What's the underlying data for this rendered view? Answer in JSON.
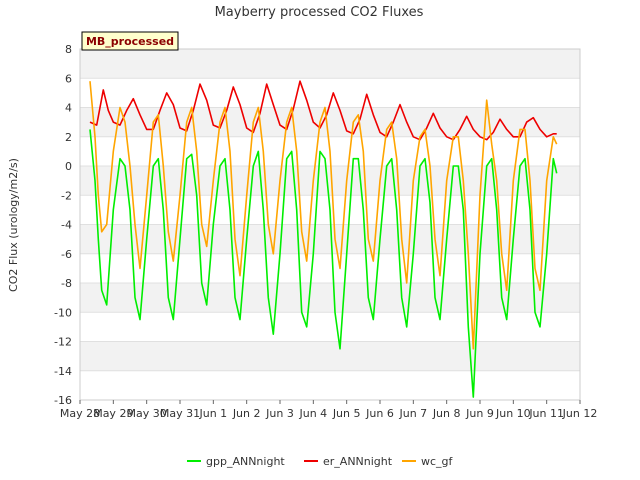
{
  "chart_data": {
    "type": "line",
    "title": "Mayberry processed CO2 Fluxes",
    "xlabel": "",
    "ylabel": "CO2 Flux (urology/m2/s)",
    "ylim": [
      -16,
      8
    ],
    "yticks": [
      -16,
      -14,
      -12,
      -10,
      -8,
      -6,
      -4,
      -2,
      0,
      2,
      4,
      6,
      8
    ],
    "xlim": [
      0,
      15
    ],
    "xticks": [
      {
        "pos": 0,
        "label": "May 28"
      },
      {
        "pos": 1,
        "label": "May 29"
      },
      {
        "pos": 2,
        "label": "May 30"
      },
      {
        "pos": 3,
        "label": "May 31"
      },
      {
        "pos": 4,
        "label": "Jun 1"
      },
      {
        "pos": 5,
        "label": "Jun 2"
      },
      {
        "pos": 6,
        "label": "Jun 3"
      },
      {
        "pos": 7,
        "label": "Jun 4"
      },
      {
        "pos": 8,
        "label": "Jun 5"
      },
      {
        "pos": 9,
        "label": "Jun 6"
      },
      {
        "pos": 10,
        "label": "Jun 7"
      },
      {
        "pos": 11,
        "label": "Jun 8"
      },
      {
        "pos": 12,
        "label": "Jun 9"
      },
      {
        "pos": 13,
        "label": "Jun 10"
      },
      {
        "pos": 14,
        "label": "Jun 11"
      },
      {
        "pos": 15,
        "label": "Jun 12"
      }
    ],
    "grid": true,
    "legend_position": "bottom-center",
    "annotation": "MB_processed",
    "series": [
      {
        "name": "gpp_ANNnight",
        "color": "#00ee00",
        "x": [
          0.3,
          0.45,
          0.55,
          0.65,
          0.8,
          1.0,
          1.2,
          1.35,
          1.5,
          1.65,
          1.8,
          2.0,
          2.2,
          2.35,
          2.5,
          2.65,
          2.8,
          3.0,
          3.2,
          3.35,
          3.5,
          3.65,
          3.8,
          4.0,
          4.2,
          4.35,
          4.5,
          4.65,
          4.8,
          5.0,
          5.2,
          5.35,
          5.5,
          5.65,
          5.8,
          6.0,
          6.2,
          6.35,
          6.5,
          6.65,
          6.8,
          7.0,
          7.2,
          7.35,
          7.5,
          7.65,
          7.8,
          8.0,
          8.2,
          8.35,
          8.5,
          8.65,
          8.8,
          9.0,
          9.2,
          9.35,
          9.5,
          9.65,
          9.8,
          10.0,
          10.2,
          10.35,
          10.5,
          10.65,
          10.8,
          11.0,
          11.2,
          11.35,
          11.5,
          11.65,
          11.8,
          12.0,
          12.2,
          12.35,
          12.5,
          12.65,
          12.8,
          13.0,
          13.2,
          13.35,
          13.5,
          13.65,
          13.8,
          14.0,
          14.2,
          14.3
        ],
        "y": [
          2.5,
          -1,
          -5,
          -8.5,
          -9.5,
          -3,
          0.5,
          0,
          -3,
          -9,
          -10.5,
          -5,
          0,
          0.5,
          -3,
          -9,
          -10.5,
          -5,
          0.5,
          0.8,
          -2,
          -8,
          -9.5,
          -4,
          0,
          0.5,
          -3,
          -9,
          -10.5,
          -5,
          0,
          1,
          -3,
          -9,
          -11.5,
          -6,
          0.5,
          1,
          -3,
          -10,
          -11,
          -6,
          1,
          0.5,
          -3,
          -10,
          -12.5,
          -6,
          0.5,
          0.5,
          -3,
          -9,
          -10.5,
          -5,
          0,
          0.5,
          -3,
          -9,
          -11,
          -6,
          0,
          0.5,
          -2.5,
          -9,
          -10.5,
          -5,
          0,
          0,
          -3,
          -11,
          -15.8,
          -6,
          0,
          0.5,
          -3,
          -9,
          -10.5,
          -5,
          0,
          0.5,
          -3,
          -10,
          -11,
          -6,
          0.5,
          -0.5
        ]
      },
      {
        "name": "er_ANNnight",
        "color": "#ee0000",
        "x": [
          0.3,
          0.5,
          0.7,
          0.85,
          1.0,
          1.2,
          1.4,
          1.6,
          1.8,
          2.0,
          2.2,
          2.4,
          2.6,
          2.8,
          3.0,
          3.2,
          3.4,
          3.6,
          3.8,
          4.0,
          4.2,
          4.4,
          4.6,
          4.8,
          5.0,
          5.2,
          5.4,
          5.6,
          5.8,
          6.0,
          6.2,
          6.4,
          6.6,
          6.8,
          7.0,
          7.2,
          7.4,
          7.6,
          7.8,
          8.0,
          8.2,
          8.4,
          8.6,
          8.8,
          9.0,
          9.2,
          9.4,
          9.6,
          9.8,
          10.0,
          10.2,
          10.4,
          10.6,
          10.8,
          11.0,
          11.2,
          11.4,
          11.6,
          11.8,
          12.0,
          12.2,
          12.4,
          12.6,
          12.8,
          13.0,
          13.2,
          13.4,
          13.6,
          13.8,
          14.0,
          14.2,
          14.3
        ],
        "y": [
          3.0,
          2.8,
          5.2,
          3.8,
          3.0,
          2.8,
          3.8,
          4.6,
          3.5,
          2.5,
          2.5,
          3.8,
          5.0,
          4.2,
          2.6,
          2.4,
          3.8,
          5.6,
          4.5,
          2.8,
          2.6,
          3.8,
          5.4,
          4.2,
          2.6,
          2.3,
          3.6,
          5.6,
          4.2,
          2.8,
          2.5,
          3.9,
          5.8,
          4.5,
          3.0,
          2.6,
          3.5,
          5.0,
          3.8,
          2.4,
          2.2,
          3.2,
          4.9,
          3.5,
          2.3,
          2.0,
          3.0,
          4.2,
          3.0,
          2.0,
          1.8,
          2.6,
          3.6,
          2.6,
          2.0,
          1.8,
          2.5,
          3.4,
          2.5,
          2.0,
          1.8,
          2.3,
          3.2,
          2.5,
          2.0,
          2.0,
          3.0,
          3.3,
          2.5,
          2.0,
          2.2,
          2.2
        ]
      },
      {
        "name": "wc_gf",
        "color": "#ffa500",
        "x": [
          0.3,
          0.45,
          0.55,
          0.65,
          0.8,
          1.0,
          1.2,
          1.35,
          1.5,
          1.65,
          1.8,
          2.0,
          2.2,
          2.35,
          2.5,
          2.65,
          2.8,
          3.0,
          3.2,
          3.35,
          3.5,
          3.65,
          3.8,
          4.0,
          4.2,
          4.35,
          4.5,
          4.65,
          4.8,
          5.0,
          5.2,
          5.35,
          5.5,
          5.65,
          5.8,
          6.0,
          6.2,
          6.35,
          6.5,
          6.65,
          6.8,
          7.0,
          7.2,
          7.35,
          7.5,
          7.65,
          7.8,
          8.0,
          8.2,
          8.35,
          8.5,
          8.65,
          8.8,
          9.0,
          9.2,
          9.35,
          9.5,
          9.65,
          9.8,
          10.0,
          10.2,
          10.35,
          10.5,
          10.65,
          10.8,
          11.0,
          11.2,
          11.35,
          11.5,
          11.65,
          11.8,
          12.0,
          12.2,
          12.35,
          12.5,
          12.65,
          12.8,
          13.0,
          13.2,
          13.35,
          13.5,
          13.65,
          13.8,
          14.0,
          14.2,
          14.3
        ],
        "y": [
          5.8,
          2,
          -2,
          -4.5,
          -4,
          1,
          4,
          3,
          0,
          -4,
          -7,
          -2,
          3,
          3.5,
          0,
          -4.5,
          -6.5,
          -2,
          3,
          4,
          1,
          -4,
          -5.5,
          -1,
          3,
          4,
          1,
          -5,
          -7.5,
          -2,
          3,
          4,
          1,
          -4,
          -6,
          -1,
          3,
          4,
          1,
          -4.5,
          -6.5,
          -1,
          3,
          4,
          1,
          -5,
          -7,
          -1,
          3,
          3.5,
          1,
          -5,
          -6.5,
          -1,
          2.5,
          3,
          0.5,
          -5,
          -8,
          -1,
          2,
          2.5,
          0,
          -5,
          -7.5,
          -1,
          2,
          2,
          -1,
          -6,
          -12.5,
          -2,
          4.5,
          1.5,
          -1,
          -6,
          -8.5,
          -1,
          2.5,
          2.5,
          -1,
          -7,
          -8.5,
          -1,
          2,
          1.5
        ]
      }
    ]
  }
}
